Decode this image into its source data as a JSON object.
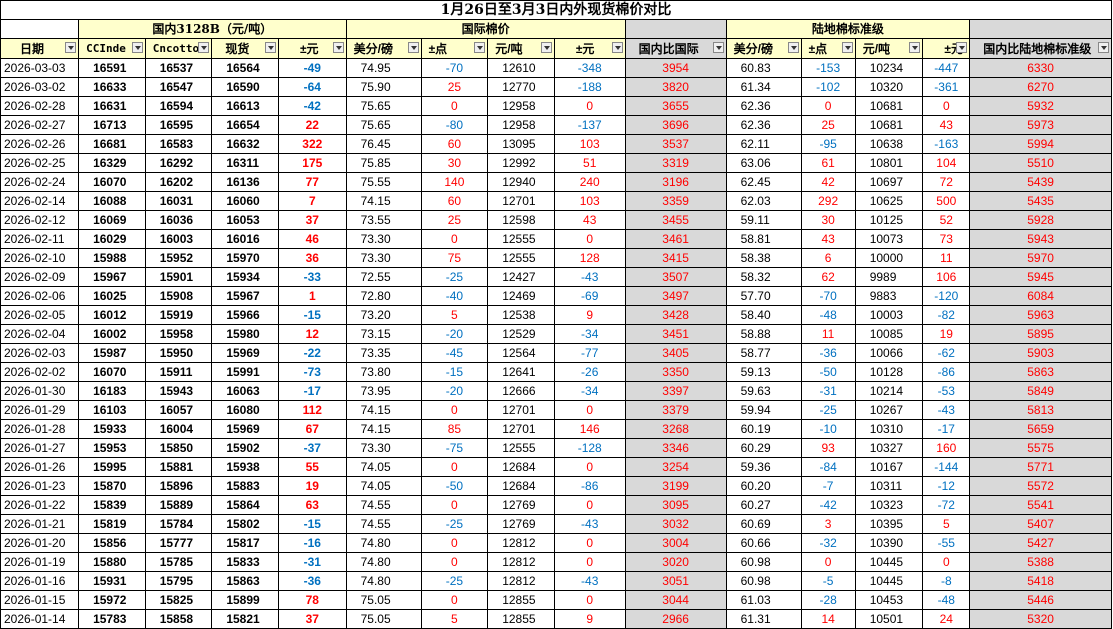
{
  "title": "1月26日至3月3日内外现货棉价对比",
  "groups": {
    "domestic": "国内3128B（元/吨）",
    "intl": "国际棉价",
    "landed": "陆地棉标准级"
  },
  "headers": [
    "日期",
    "CCInde",
    "Cncotto",
    "现货",
    "±元",
    "美分/磅",
    "±点",
    "元/吨",
    "±元",
    "国内比国际",
    "美分/磅",
    "±点",
    "元/吨",
    "±元",
    "国内比陆地棉标准级"
  ],
  "rows": [
    [
      "2026-03-03",
      "16591",
      "16537",
      "16564",
      "-49",
      "74.95",
      "-70",
      "12610",
      "-348",
      "3954",
      "60.83",
      "-153",
      "10234",
      "-447",
      "6330"
    ],
    [
      "2026-03-02",
      "16633",
      "16547",
      "16590",
      "-64",
      "75.90",
      "25",
      "12770",
      "-188",
      "3820",
      "61.34",
      "-102",
      "10320",
      "-361",
      "6270"
    ],
    [
      "2026-02-28",
      "16631",
      "16594",
      "16613",
      "-42",
      "75.65",
      "0",
      "12958",
      "0",
      "3655",
      "62.36",
      "0",
      "10681",
      "0",
      "5932"
    ],
    [
      "2026-02-27",
      "16713",
      "16595",
      "16654",
      "22",
      "75.65",
      "-80",
      "12958",
      "-137",
      "3696",
      "62.36",
      "25",
      "10681",
      "43",
      "5973"
    ],
    [
      "2026-02-26",
      "16681",
      "16583",
      "16632",
      "322",
      "76.45",
      "60",
      "13095",
      "103",
      "3537",
      "62.11",
      "-95",
      "10638",
      "-163",
      "5994"
    ],
    [
      "2026-02-25",
      "16329",
      "16292",
      "16311",
      "175",
      "75.85",
      "30",
      "12992",
      "51",
      "3319",
      "63.06",
      "61",
      "10801",
      "104",
      "5510"
    ],
    [
      "2026-02-24",
      "16070",
      "16202",
      "16136",
      "77",
      "75.55",
      "140",
      "12940",
      "240",
      "3196",
      "62.45",
      "42",
      "10697",
      "72",
      "5439"
    ],
    [
      "2026-02-14",
      "16088",
      "16031",
      "16060",
      "7",
      "74.15",
      "60",
      "12701",
      "103",
      "3359",
      "62.03",
      "292",
      "10625",
      "500",
      "5435"
    ],
    [
      "2026-02-12",
      "16069",
      "16036",
      "16053",
      "37",
      "73.55",
      "25",
      "12598",
      "43",
      "3455",
      "59.11",
      "30",
      "10125",
      "52",
      "5928"
    ],
    [
      "2026-02-11",
      "16029",
      "16003",
      "16016",
      "46",
      "73.30",
      "0",
      "12555",
      "0",
      "3461",
      "58.81",
      "43",
      "10073",
      "73",
      "5943"
    ],
    [
      "2026-02-10",
      "15988",
      "15952",
      "15970",
      "36",
      "73.30",
      "75",
      "12555",
      "128",
      "3415",
      "58.38",
      "6",
      "10000",
      "11",
      "5970"
    ],
    [
      "2026-02-09",
      "15967",
      "15901",
      "15934",
      "-33",
      "72.55",
      "-25",
      "12427",
      "-43",
      "3507",
      "58.32",
      "62",
      "9989",
      "106",
      "5945"
    ],
    [
      "2026-02-06",
      "16025",
      "15908",
      "15967",
      "1",
      "72.80",
      "-40",
      "12469",
      "-69",
      "3497",
      "57.70",
      "-70",
      "9883",
      "-120",
      "6084"
    ],
    [
      "2026-02-05",
      "16012",
      "15919",
      "15966",
      "-15",
      "73.20",
      "5",
      "12538",
      "9",
      "3428",
      "58.40",
      "-48",
      "10003",
      "-82",
      "5963"
    ],
    [
      "2026-02-04",
      "16002",
      "15958",
      "15980",
      "12",
      "73.15",
      "-20",
      "12529",
      "-34",
      "3451",
      "58.88",
      "11",
      "10085",
      "19",
      "5895"
    ],
    [
      "2026-02-03",
      "15987",
      "15950",
      "15969",
      "-22",
      "73.35",
      "-45",
      "12564",
      "-77",
      "3405",
      "58.77",
      "-36",
      "10066",
      "-62",
      "5903"
    ],
    [
      "2026-02-02",
      "16070",
      "15911",
      "15991",
      "-73",
      "73.80",
      "-15",
      "12641",
      "-26",
      "3350",
      "59.13",
      "-50",
      "10128",
      "-86",
      "5863"
    ],
    [
      "2026-01-30",
      "16183",
      "15943",
      "16063",
      "-17",
      "73.95",
      "-20",
      "12666",
      "-34",
      "3397",
      "59.63",
      "-31",
      "10214",
      "-53",
      "5849"
    ],
    [
      "2026-01-29",
      "16103",
      "16057",
      "16080",
      "112",
      "74.15",
      "0",
      "12701",
      "0",
      "3379",
      "59.94",
      "-25",
      "10267",
      "-43",
      "5813"
    ],
    [
      "2026-01-28",
      "15933",
      "16004",
      "15969",
      "67",
      "74.15",
      "85",
      "12701",
      "146",
      "3268",
      "60.19",
      "-10",
      "10310",
      "-17",
      "5659"
    ],
    [
      "2026-01-27",
      "15953",
      "15850",
      "15902",
      "-37",
      "73.30",
      "-75",
      "12555",
      "-128",
      "3346",
      "60.29",
      "93",
      "10327",
      "160",
      "5575"
    ],
    [
      "2026-01-26",
      "15995",
      "15881",
      "15938",
      "55",
      "74.05",
      "0",
      "12684",
      "0",
      "3254",
      "59.36",
      "-84",
      "10167",
      "-144",
      "5771"
    ],
    [
      "2026-01-23",
      "15870",
      "15896",
      "15883",
      "19",
      "74.05",
      "-50",
      "12684",
      "-86",
      "3199",
      "60.20",
      "-7",
      "10311",
      "-12",
      "5572"
    ],
    [
      "2026-01-22",
      "15839",
      "15889",
      "15864",
      "63",
      "74.55",
      "0",
      "12769",
      "0",
      "3095",
      "60.27",
      "-42",
      "10323",
      "-72",
      "5541"
    ],
    [
      "2026-01-21",
      "15819",
      "15784",
      "15802",
      "-15",
      "74.55",
      "-25",
      "12769",
      "-43",
      "3032",
      "60.69",
      "3",
      "10395",
      "5",
      "5407"
    ],
    [
      "2026-01-20",
      "15856",
      "15777",
      "15817",
      "-16",
      "74.80",
      "0",
      "12812",
      "0",
      "3004",
      "60.66",
      "-32",
      "10390",
      "-55",
      "5427"
    ],
    [
      "2026-01-19",
      "15880",
      "15785",
      "15833",
      "-31",
      "74.80",
      "0",
      "12812",
      "0",
      "3020",
      "60.98",
      "0",
      "10445",
      "0",
      "5388"
    ],
    [
      "2026-01-16",
      "15931",
      "15795",
      "15863",
      "-36",
      "74.80",
      "-25",
      "12812",
      "-43",
      "3051",
      "60.98",
      "-5",
      "10445",
      "-8",
      "5418"
    ],
    [
      "2026-01-15",
      "15972",
      "15825",
      "15899",
      "78",
      "75.05",
      "0",
      "12855",
      "0",
      "3044",
      "61.03",
      "-28",
      "10453",
      "-48",
      "5446"
    ],
    [
      "2026-01-14",
      "15783",
      "15858",
      "15821",
      "37",
      "75.05",
      "5",
      "12855",
      "9",
      "2966",
      "61.31",
      "14",
      "10501",
      "24",
      "5320"
    ]
  ],
  "colors": {
    "positive": "#ff0000",
    "negative": "#0070c0",
    "header_bg": "#ffffcc",
    "compare_bg": "#d9d9d9"
  }
}
